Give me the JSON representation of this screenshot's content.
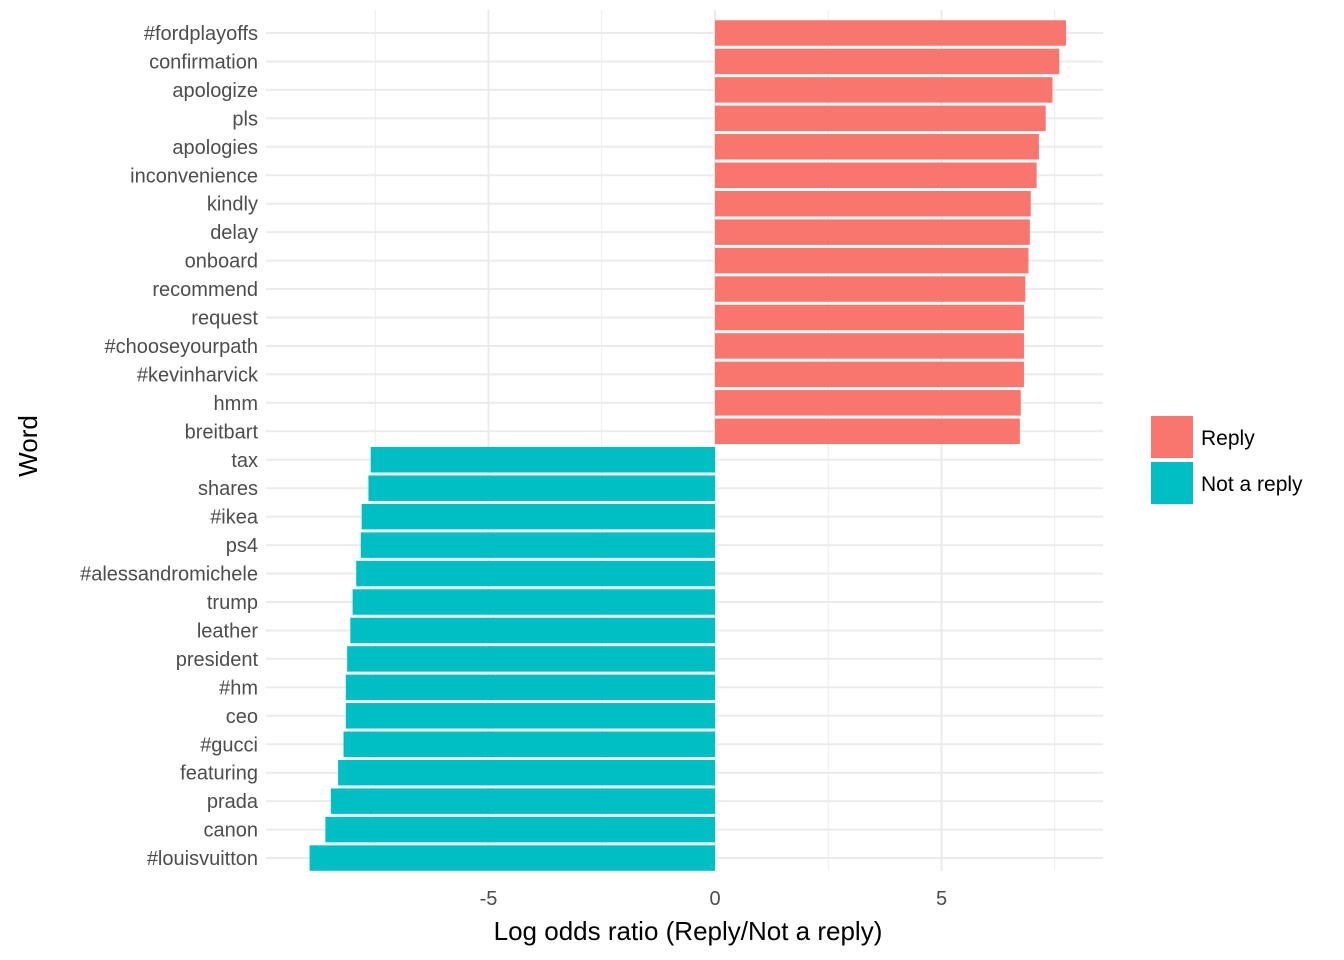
{
  "chart_data": {
    "type": "bar",
    "orientation": "horizontal",
    "xlabel": "Log odds ratio (Reply/Not a reply)",
    "ylabel": "Word",
    "xlim": [
      -9.4,
      8.5
    ],
    "x_ticks": [
      -5,
      0,
      5
    ],
    "x_tick_labels": [
      "-5",
      "0",
      "5"
    ],
    "grid": true,
    "legend_position": "right",
    "colors": {
      "Reply": "#F8766D",
      "Not a reply": "#00BFC4"
    },
    "categories": [
      "#fordplayoffs",
      "confirmation",
      "apologize",
      "pls",
      "apologies",
      "inconvenience",
      "kindly",
      "delay",
      "onboard",
      "recommend",
      "request",
      "#chooseyourpath",
      "#kevinharvick",
      "hmm",
      "breitbart",
      "tax",
      "shares",
      "#ikea",
      "ps4",
      "#alessandromichele",
      "trump",
      "leather",
      "president",
      "#hm",
      "ceo",
      "#gucci",
      "featuring",
      "prada",
      "canon",
      "#louisvuitton"
    ],
    "values": [
      7.75,
      7.6,
      7.45,
      7.3,
      7.15,
      7.1,
      6.97,
      6.95,
      6.92,
      6.85,
      6.82,
      6.82,
      6.82,
      6.75,
      6.73,
      -7.6,
      -7.65,
      -7.8,
      -7.82,
      -7.92,
      -8.0,
      -8.05,
      -8.12,
      -8.15,
      -8.15,
      -8.2,
      -8.32,
      -8.48,
      -8.6,
      -8.95
    ],
    "groups": [
      "Reply",
      "Reply",
      "Reply",
      "Reply",
      "Reply",
      "Reply",
      "Reply",
      "Reply",
      "Reply",
      "Reply",
      "Reply",
      "Reply",
      "Reply",
      "Reply",
      "Reply",
      "Not a reply",
      "Not a reply",
      "Not a reply",
      "Not a reply",
      "Not a reply",
      "Not a reply",
      "Not a reply",
      "Not a reply",
      "Not a reply",
      "Not a reply",
      "Not a reply",
      "Not a reply",
      "Not a reply",
      "Not a reply",
      "Not a reply"
    ],
    "legend": [
      "Reply",
      "Not a reply"
    ]
  }
}
